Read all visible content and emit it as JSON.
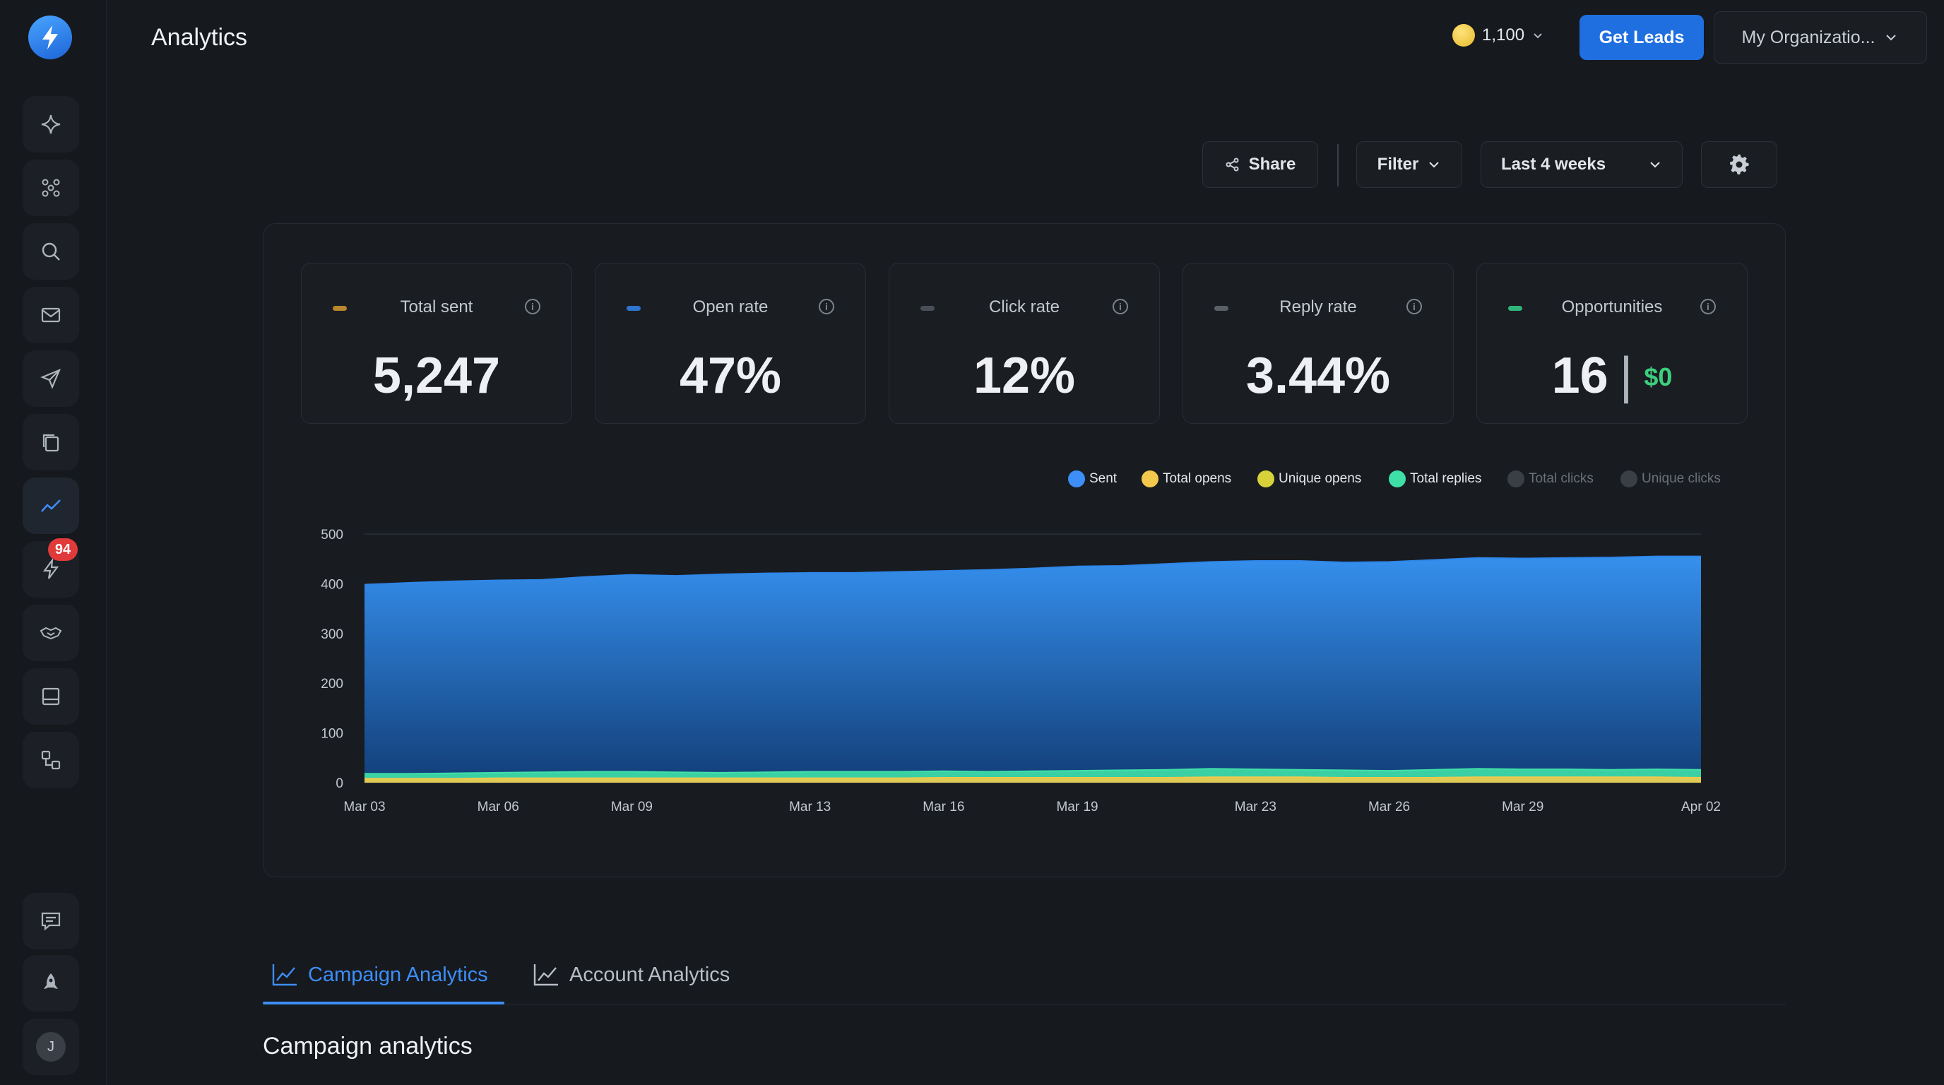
{
  "header": {
    "title": "Analytics",
    "credits": "1,100",
    "get_leads_label": "Get Leads",
    "org_label": "My Organizatio..."
  },
  "sidebar": {
    "notification_badge": "94",
    "avatar_initial": "J"
  },
  "toolbar": {
    "share_label": "Share",
    "filter_label": "Filter",
    "date_range": "Last 4 weeks"
  },
  "stats": [
    {
      "label": "Total sent",
      "value": "5,247",
      "color": "#b8862b"
    },
    {
      "label": "Open rate",
      "value": "47%",
      "color": "#2f74d0"
    },
    {
      "label": "Click rate",
      "value": "12%",
      "color": "#4a4f57"
    },
    {
      "label": "Reply rate",
      "value": "3.44%",
      "color": "#5a5f67"
    },
    {
      "label": "Opportunities",
      "value": "16",
      "money": "$0",
      "color": "#2fb57a"
    }
  ],
  "legend": [
    {
      "label": "Sent",
      "color": "#3d8ef7",
      "active": true
    },
    {
      "label": "Total opens",
      "color": "#f2c94c",
      "active": true
    },
    {
      "label": "Unique opens",
      "color": "#d8d23a",
      "active": true
    },
    {
      "label": "Total replies",
      "color": "#3fe0a8",
      "active": true
    },
    {
      "label": "Total clicks",
      "color": "#3a3e45",
      "active": false
    },
    {
      "label": "Unique clicks",
      "color": "#3a3e45",
      "active": false
    }
  ],
  "chart_data": {
    "type": "area",
    "x": [
      "Mar 03",
      "Mar 04",
      "Mar 05",
      "Mar 06",
      "Mar 07",
      "Mar 08",
      "Mar 09",
      "Mar 10",
      "Mar 11",
      "Mar 12",
      "Mar 13",
      "Mar 14",
      "Mar 15",
      "Mar 16",
      "Mar 17",
      "Mar 18",
      "Mar 19",
      "Mar 20",
      "Mar 21",
      "Mar 22",
      "Mar 23",
      "Mar 24",
      "Mar 25",
      "Mar 26",
      "Mar 27",
      "Mar 28",
      "Mar 29",
      "Mar 30",
      "Mar 31",
      "Apr 01",
      "Apr 02"
    ],
    "x_ticks": [
      "Mar 03",
      "Mar 06",
      "Mar 09",
      "Mar 13",
      "Mar 16",
      "Mar 19",
      "Mar 23",
      "Mar 26",
      "Mar 29",
      "Apr 02"
    ],
    "series": [
      {
        "name": "Sent",
        "color": "#2f86e8",
        "values": [
          398,
          402,
          405,
          407,
          408,
          414,
          418,
          416,
          419,
          421,
          422,
          422,
          424,
          426,
          428,
          431,
          435,
          436,
          440,
          444,
          446,
          446,
          443,
          444,
          448,
          452,
          451,
          452,
          453,
          455,
          455
        ]
      },
      {
        "name": "Total replies",
        "color": "#3fe0a8",
        "values": [
          18,
          18,
          19,
          20,
          21,
          22,
          22,
          21,
          20,
          21,
          22,
          22,
          22,
          23,
          22,
          23,
          24,
          25,
          26,
          28,
          27,
          26,
          25,
          24,
          26,
          28,
          27,
          27,
          26,
          27,
          26
        ]
      },
      {
        "name": "Total opens",
        "color": "#f2c94c",
        "values": [
          8,
          8,
          8,
          9,
          9,
          9,
          9,
          9,
          9,
          9,
          9,
          9,
          9,
          10,
          10,
          10,
          10,
          10,
          10,
          11,
          11,
          11,
          10,
          10,
          10,
          11,
          11,
          11,
          11,
          11,
          10
        ]
      }
    ],
    "yticks": [
      0,
      100,
      200,
      300,
      400,
      500
    ],
    "ylim": [
      0,
      500
    ]
  },
  "tabs": [
    {
      "label": "Campaign Analytics",
      "active": true
    },
    {
      "label": "Account Analytics",
      "active": false
    }
  ],
  "section_title": "Campaign analytics"
}
